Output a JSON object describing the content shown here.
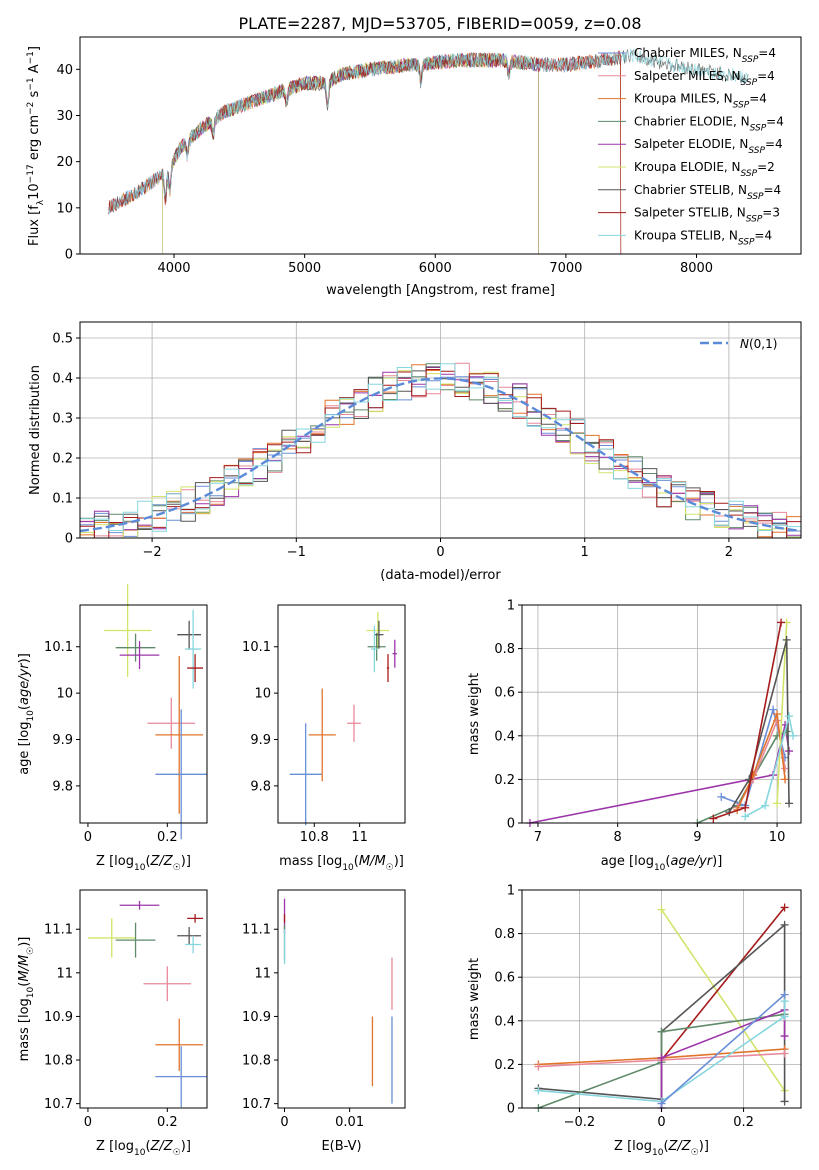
{
  "figure_title": "PLATE=2287, MJD=53705, FIBERID=0059, z=0.08",
  "colors": {
    "Chabrier MILES": "#6a8fd6",
    "Salpeter MILES": "#e8899a",
    "Kroupa MILES": "#e0742a",
    "Chabrier ELODIE": "#5e8a6a",
    "Salpeter ELODIE": "#9b35a9",
    "Kroupa ELODIE": "#d4e36a",
    "Chabrier STELIB": "#555555",
    "Salpeter STELIB": "#a61c1c",
    "Kroupa STELIB": "#86d6de"
  },
  "chart_data": [
    {
      "id": "spectrum",
      "type": "line",
      "title": "PLATE=2287, MJD=53705, FIBERID=0059, z=0.08",
      "xlabel": "wavelength [Angstrom, rest frame]",
      "ylabel": "Flux [f_λ10⁻¹⁷ erg cm⁻² s⁻¹ A⁻¹]",
      "xlim": [
        3280,
        8800
      ],
      "ylim": [
        0,
        47
      ],
      "xticks": [
        4000,
        5000,
        6000,
        7000,
        8000
      ],
      "yticks": [
        0,
        10,
        20,
        30,
        40
      ],
      "grid": false,
      "legend_position": "upper right",
      "series": [
        {
          "name": "Chabrier MILES, N_SSP=4",
          "color": "#6a8fd6",
          "x_range": [
            3500,
            7420
          ]
        },
        {
          "name": "Salpeter MILES, N_SSP=4",
          "color": "#e8899a",
          "x_range": [
            3500,
            7420
          ]
        },
        {
          "name": "Kroupa MILES, N_SSP=4",
          "color": "#e0742a",
          "x_range": [
            3500,
            7420
          ]
        },
        {
          "name": "Chabrier ELODIE, N_SSP=4",
          "color": "#5e8a6a",
          "x_range": [
            3910,
            6790
          ]
        },
        {
          "name": "Salpeter ELODIE, N_SSP=4",
          "color": "#9b35a9",
          "x_range": [
            3910,
            6790
          ]
        },
        {
          "name": "Kroupa ELODIE, N_SSP=2",
          "color": "#d4e36a",
          "x_range": [
            3910,
            6790
          ]
        },
        {
          "name": "Chabrier STELIB, N_SSP=4",
          "color": "#555555",
          "x_range": [
            3500,
            8400
          ]
        },
        {
          "name": "Salpeter STELIB, N_SSP=3",
          "color": "#a61c1c",
          "x_range": [
            3500,
            7420
          ]
        },
        {
          "name": "Kroupa STELIB, N_SSP=4",
          "color": "#86d6de",
          "x_range": [
            3500,
            8400
          ]
        }
      ],
      "continuum_points": [
        [
          3500,
          10
        ],
        [
          3700,
          13
        ],
        [
          3850,
          16
        ],
        [
          3950,
          18
        ],
        [
          4050,
          23
        ],
        [
          4200,
          27
        ],
        [
          4400,
          31
        ],
        [
          4600,
          33
        ],
        [
          4800,
          35
        ],
        [
          5000,
          37
        ],
        [
          5150,
          37
        ],
        [
          5300,
          39
        ],
        [
          5500,
          40
        ],
        [
          5800,
          41
        ],
        [
          6000,
          41.5
        ],
        [
          6200,
          42
        ],
        [
          6500,
          42
        ],
        [
          6800,
          41
        ],
        [
          7000,
          41
        ],
        [
          7300,
          42
        ],
        [
          7500,
          43
        ],
        [
          7800,
          41
        ],
        [
          8000,
          40
        ],
        [
          8200,
          39
        ],
        [
          8400,
          38
        ]
      ]
    },
    {
      "id": "residuals",
      "type": "bar",
      "xlabel": "(data-model)/error",
      "ylabel": "Normed distribution",
      "xlim": [
        -2.5,
        2.5
      ],
      "ylim": [
        0,
        0.54
      ],
      "xticks": [
        -2,
        -1,
        0,
        1,
        2
      ],
      "yticks": [
        0.0,
        0.1,
        0.2,
        0.3,
        0.4,
        0.5
      ],
      "grid": true,
      "legend_position": "upper right",
      "bin_width": 0.1,
      "legend_label": "N(0,1)",
      "reference_curve": {
        "name": "N(0,1)",
        "mu": 0,
        "sigma": 1,
        "color": "#5b8bd8",
        "style": "dashed"
      }
    },
    {
      "id": "age-vs-Z",
      "type": "scatter",
      "xlabel": "Z [log10(Z/Z☉)]",
      "ylabel": "age [log10(age/yr)]",
      "xlim": [
        -0.02,
        0.3
      ],
      "ylim": [
        9.72,
        10.19
      ],
      "xticks": [
        0.0,
        0.2
      ],
      "yticks": [
        9.8,
        9.9,
        10.0,
        10.1
      ],
      "grid": false,
      "points": [
        {
          "model": "Kroupa ELODIE",
          "x": 0.1,
          "y": 10.135,
          "xerr": 0.06,
          "yerr": 0.1
        },
        {
          "model": "Chabrier ELODIE",
          "x": 0.12,
          "y": 10.098,
          "xerr": 0.05,
          "yerr": 0.03
        },
        {
          "model": "Salpeter ELODIE",
          "x": 0.13,
          "y": 10.082,
          "xerr": 0.05,
          "yerr": 0.03
        },
        {
          "model": "Chabrier STELIB",
          "x": 0.255,
          "y": 10.126,
          "xerr": 0.03,
          "yerr": 0.03
        },
        {
          "model": "Kroupa STELIB",
          "x": 0.265,
          "y": 10.095,
          "xerr": 0.02,
          "yerr": 0.085
        },
        {
          "model": "Salpeter STELIB",
          "x": 0.27,
          "y": 10.054,
          "xerr": 0.02,
          "yerr": 0.03
        },
        {
          "model": "Salpeter MILES",
          "x": 0.21,
          "y": 9.935,
          "xerr": 0.06,
          "yerr": 0.055
        },
        {
          "model": "Kroupa MILES",
          "x": 0.23,
          "y": 9.91,
          "xerr": 0.06,
          "yerr": 0.17
        },
        {
          "model": "Chabrier MILES",
          "x": 0.235,
          "y": 9.825,
          "xerr": 0.065,
          "yerr": 0.14
        }
      ]
    },
    {
      "id": "age-vs-mass",
      "type": "scatter",
      "xlabel": "mass [log10(M/M☉)]",
      "ylabel": "",
      "xlim": [
        10.64,
        11.2
      ],
      "ylim": [
        9.72,
        10.19
      ],
      "xticks": [
        10.8,
        11.0
      ],
      "yticks": [
        9.8,
        9.9,
        10.0,
        10.1
      ],
      "grid": false,
      "points": [
        {
          "model": "Kroupa ELODIE",
          "x": 11.08,
          "y": 10.135,
          "xerr": 0.05,
          "yerr": 0.04
        },
        {
          "model": "Chabrier ELODIE",
          "x": 11.075,
          "y": 10.1,
          "xerr": 0.04,
          "yerr": 0.03
        },
        {
          "model": "Salpeter ELODIE",
          "x": 11.155,
          "y": 10.085,
          "xerr": 0.01,
          "yerr": 0.03
        },
        {
          "model": "Chabrier STELIB",
          "x": 11.085,
          "y": 10.126,
          "xerr": 0.02,
          "yerr": 0.03
        },
        {
          "model": "Kroupa STELIB",
          "x": 11.065,
          "y": 10.095,
          "xerr": 0.015,
          "yerr": 0.05
        },
        {
          "model": "Salpeter STELIB",
          "x": 11.125,
          "y": 10.054,
          "xerr": 0.005,
          "yerr": 0.03
        },
        {
          "model": "Salpeter MILES",
          "x": 10.975,
          "y": 9.935,
          "xerr": 0.03,
          "yerr": 0.04
        },
        {
          "model": "Kroupa MILES",
          "x": 10.835,
          "y": 9.91,
          "xerr": 0.06,
          "yerr": 0.1
        },
        {
          "model": "Chabrier MILES",
          "x": 10.762,
          "y": 9.825,
          "xerr": 0.07,
          "yerr": 0.11
        }
      ]
    },
    {
      "id": "weight-vs-age",
      "type": "line",
      "xlabel": "age [log10(age/yr)]",
      "ylabel": "mass weight",
      "xlim": [
        6.8,
        10.3
      ],
      "ylim": [
        0,
        1.0
      ],
      "xticks": [
        7,
        8,
        9,
        10
      ],
      "yticks": [
        0.0,
        0.2,
        0.4,
        0.6,
        0.8,
        1.0
      ],
      "grid": true,
      "series": [
        {
          "model": "Salpeter ELODIE",
          "points": [
            [
              6.9,
              0.0
            ],
            [
              9.95,
              0.22
            ],
            [
              10.1,
              0.45
            ],
            [
              10.15,
              0.33
            ]
          ]
        },
        {
          "model": "Chabrier ELODIE",
          "points": [
            [
              9.0,
              0.0
            ],
            [
              9.5,
              0.08
            ],
            [
              10.0,
              0.4
            ],
            [
              10.12,
              0.42
            ]
          ]
        },
        {
          "model": "Chabrier MILES",
          "points": [
            [
              9.3,
              0.12
            ],
            [
              9.6,
              0.08
            ],
            [
              9.95,
              0.52
            ],
            [
              10.1,
              0.3
            ]
          ]
        },
        {
          "model": "Salpeter MILES",
          "points": [
            [
              9.5,
              0.07
            ],
            [
              9.7,
              0.2
            ],
            [
              10.0,
              0.47
            ],
            [
              10.1,
              0.25
            ]
          ]
        },
        {
          "model": "Kroupa MILES",
          "points": [
            [
              9.5,
              0.06
            ],
            [
              9.7,
              0.22
            ],
            [
              10.0,
              0.5
            ],
            [
              10.1,
              0.2
            ]
          ]
        },
        {
          "model": "Kroupa ELODIE",
          "points": [
            [
              10.0,
              0.09
            ],
            [
              10.12,
              0.92
            ]
          ]
        },
        {
          "model": "Chabrier STELIB",
          "points": [
            [
              9.4,
              0.05
            ],
            [
              9.65,
              0.2
            ],
            [
              10.12,
              0.84
            ],
            [
              10.15,
              0.09
            ]
          ]
        },
        {
          "model": "Salpeter STELIB",
          "points": [
            [
              9.2,
              0.02
            ],
            [
              9.6,
              0.07
            ],
            [
              10.05,
              0.92
            ]
          ]
        },
        {
          "model": "Kroupa STELIB",
          "points": [
            [
              9.6,
              0.03
            ],
            [
              9.85,
              0.08
            ],
            [
              10.15,
              0.49
            ],
            [
              10.2,
              0.4
            ]
          ]
        }
      ]
    },
    {
      "id": "mass-vs-Z",
      "type": "scatter",
      "xlabel": "Z [log10(Z/Z☉)]",
      "ylabel": "mass [log10(M/M☉)]",
      "xlim": [
        -0.02,
        0.3
      ],
      "ylim": [
        10.69,
        11.19
      ],
      "xticks": [
        0.0,
        0.2
      ],
      "yticks": [
        10.7,
        10.8,
        10.9,
        11.0,
        11.1
      ],
      "grid": false,
      "points": [
        {
          "model": "Kroupa ELODIE",
          "x": 0.06,
          "y": 11.08,
          "xerr": 0.06,
          "yerr": 0.045
        },
        {
          "model": "Chabrier ELODIE",
          "x": 0.12,
          "y": 11.075,
          "xerr": 0.05,
          "yerr": 0.04
        },
        {
          "model": "Salpeter ELODIE",
          "x": 0.13,
          "y": 11.155,
          "xerr": 0.05,
          "yerr": 0.01
        },
        {
          "model": "Chabrier STELIB",
          "x": 0.255,
          "y": 11.085,
          "xerr": 0.03,
          "yerr": 0.02
        },
        {
          "model": "Kroupa STELIB",
          "x": 0.265,
          "y": 11.065,
          "xerr": 0.02,
          "yerr": 0.02
        },
        {
          "model": "Salpeter STELIB",
          "x": 0.27,
          "y": 11.125,
          "xerr": 0.02,
          "yerr": 0.01
        },
        {
          "model": "Salpeter MILES",
          "x": 0.2,
          "y": 10.975,
          "xerr": 0.06,
          "yerr": 0.04
        },
        {
          "model": "Kroupa MILES",
          "x": 0.23,
          "y": 10.835,
          "xerr": 0.06,
          "yerr": 0.06
        },
        {
          "model": "Chabrier MILES",
          "x": 0.235,
          "y": 10.762,
          "xerr": 0.065,
          "yerr": 0.07
        }
      ]
    },
    {
      "id": "mass-vs-EBV",
      "type": "scatter",
      "xlabel": "E(B-V)",
      "ylabel": "",
      "xlim": [
        -0.001,
        0.0185
      ],
      "ylim": [
        10.69,
        11.19
      ],
      "xticks": [
        0.0,
        0.01
      ],
      "yticks": [
        10.7,
        10.8,
        10.9,
        11.0,
        11.1
      ],
      "grid": false,
      "points": [
        {
          "model": "Salpeter ELODIE",
          "x": 0.0,
          "y": 11.13,
          "xerr": 0,
          "yerr": 0.04
        },
        {
          "model": "Salpeter STELIB",
          "x": 0.0,
          "y": 11.125,
          "xerr": 0,
          "yerr": 0.01
        },
        {
          "model": "Chabrier ELODIE",
          "x": 0.0,
          "y": 11.07,
          "xerr": 0,
          "yerr": 0.04
        },
        {
          "model": "Kroupa STELIB",
          "x": 0.0,
          "y": 11.06,
          "xerr": 0,
          "yerr": 0.04
        },
        {
          "model": "Salpeter MILES",
          "x": 0.0165,
          "y": 10.975,
          "xerr": 0,
          "yerr": 0.06
        },
        {
          "model": "Kroupa MILES",
          "x": 0.0135,
          "y": 10.82,
          "xerr": 0,
          "yerr": 0.08
        },
        {
          "model": "Chabrier MILES",
          "x": 0.0165,
          "y": 10.8,
          "xerr": 0,
          "yerr": 0.1
        }
      ]
    },
    {
      "id": "weight-vs-Z",
      "type": "line",
      "xlabel": "Z [log10(Z/Z☉)]",
      "ylabel": "mass weight",
      "xlim": [
        -0.34,
        0.34
      ],
      "ylim": [
        0,
        1.0
      ],
      "xticks": [
        -0.2,
        0.0,
        0.2
      ],
      "yticks": [
        0.0,
        0.2,
        0.4,
        0.6,
        0.8,
        1.0
      ],
      "grid": true,
      "series": [
        {
          "model": "Kroupa ELODIE",
          "points": [
            [
              0.0,
              0.91
            ],
            [
              0.3,
              0.08
            ]
          ]
        },
        {
          "model": "Salpeter STELIB",
          "points": [
            [
              0.0,
              0.03
            ],
            [
              0.0,
              0.22
            ],
            [
              0.3,
              0.92
            ]
          ]
        },
        {
          "model": "Chabrier STELIB",
          "points": [
            [
              -0.3,
              0.09
            ],
            [
              0.0,
              0.04
            ],
            [
              0.0,
              0.35
            ],
            [
              0.3,
              0.84
            ],
            [
              0.3,
              0.03
            ]
          ]
        },
        {
          "model": "Chabrier ELODIE",
          "points": [
            [
              -0.3,
              0.0
            ],
            [
              0.0,
              0.21
            ],
            [
              0.0,
              0.35
            ],
            [
              0.3,
              0.43
            ]
          ]
        },
        {
          "model": "Kroupa MILES",
          "points": [
            [
              -0.3,
              0.2
            ],
            [
              0.0,
              0.23
            ],
            [
              0.3,
              0.27
            ]
          ]
        },
        {
          "model": "Salpeter MILES",
          "points": [
            [
              -0.3,
              0.19
            ],
            [
              0.0,
              0.22
            ],
            [
              0.3,
              0.25
            ]
          ]
        },
        {
          "model": "Salpeter ELODIE",
          "points": [
            [
              0.0,
              0.0
            ],
            [
              0.0,
              0.23
            ],
            [
              0.3,
              0.45
            ],
            [
              0.3,
              0.33
            ]
          ]
        },
        {
          "model": "Kroupa STELIB",
          "points": [
            [
              -0.3,
              0.08
            ],
            [
              0.0,
              0.03
            ],
            [
              0.3,
              0.42
            ],
            [
              0.3,
              0.49
            ]
          ]
        },
        {
          "model": "Chabrier MILES",
          "points": [
            [
              0.0,
              0.02
            ],
            [
              0.3,
              0.52
            ]
          ]
        }
      ]
    }
  ]
}
